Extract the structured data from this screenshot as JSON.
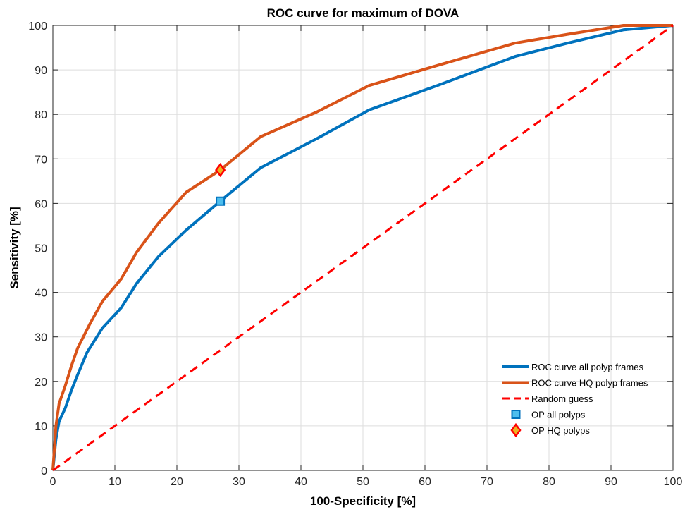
{
  "chart_data": {
    "type": "line",
    "title": "ROC curve for maximum of DOVA",
    "xlabel": "100-Specificity [%]",
    "ylabel": "Sensitivity [%]",
    "xlim": [
      0,
      100
    ],
    "ylim": [
      0,
      100
    ],
    "xticks": [
      "0",
      "10",
      "20",
      "30",
      "40",
      "50",
      "60",
      "70",
      "80",
      "90",
      "100"
    ],
    "yticks": [
      "0",
      "10",
      "20",
      "30",
      "40",
      "50",
      "60",
      "70",
      "80",
      "90",
      "100"
    ],
    "grid": true,
    "legend_position": "bottom-right",
    "series": [
      {
        "name": "ROC curve all polyp frames",
        "color": "#0072BD",
        "style": "solid",
        "x": [
          0,
          0.5,
          1,
          2,
          3,
          4,
          5.5,
          8,
          11,
          13.5,
          17,
          21.5,
          27,
          33.5,
          42.5,
          51,
          62,
          74.5,
          83,
          92,
          100
        ],
        "y": [
          0,
          7,
          11,
          14,
          18,
          21.5,
          26.5,
          32,
          36.5,
          42,
          48,
          54,
          60.5,
          68,
          74.5,
          81,
          86.5,
          93,
          96,
          99,
          100
        ]
      },
      {
        "name": "ROC curve HQ polyp frames",
        "color": "#D95319",
        "style": "solid",
        "x": [
          0,
          0.5,
          1,
          2,
          3,
          4,
          6,
          8,
          11,
          13.5,
          17,
          21.5,
          27,
          33.5,
          42.5,
          51,
          62,
          74.5,
          83,
          92,
          100
        ],
        "y": [
          0,
          10,
          15,
          19,
          23.5,
          27.5,
          33,
          38,
          43,
          49,
          55.5,
          62.5,
          67.5,
          75,
          80.5,
          86.5,
          91,
          96,
          98,
          100,
          100
        ]
      },
      {
        "name": "Random guess",
        "color": "#FF0000",
        "style": "dashed",
        "x": [
          0,
          100
        ],
        "y": [
          0,
          100
        ]
      }
    ],
    "markers": [
      {
        "name": "OP all polyps",
        "x": 27,
        "y": 60.5,
        "shape": "square",
        "face": "#4DBEEE",
        "edge": "#0072BD"
      },
      {
        "name": "OP HQ polyps",
        "x": 27,
        "y": 67.5,
        "shape": "diamond",
        "face": "#EDB120",
        "edge": "#FF0000"
      }
    ]
  }
}
